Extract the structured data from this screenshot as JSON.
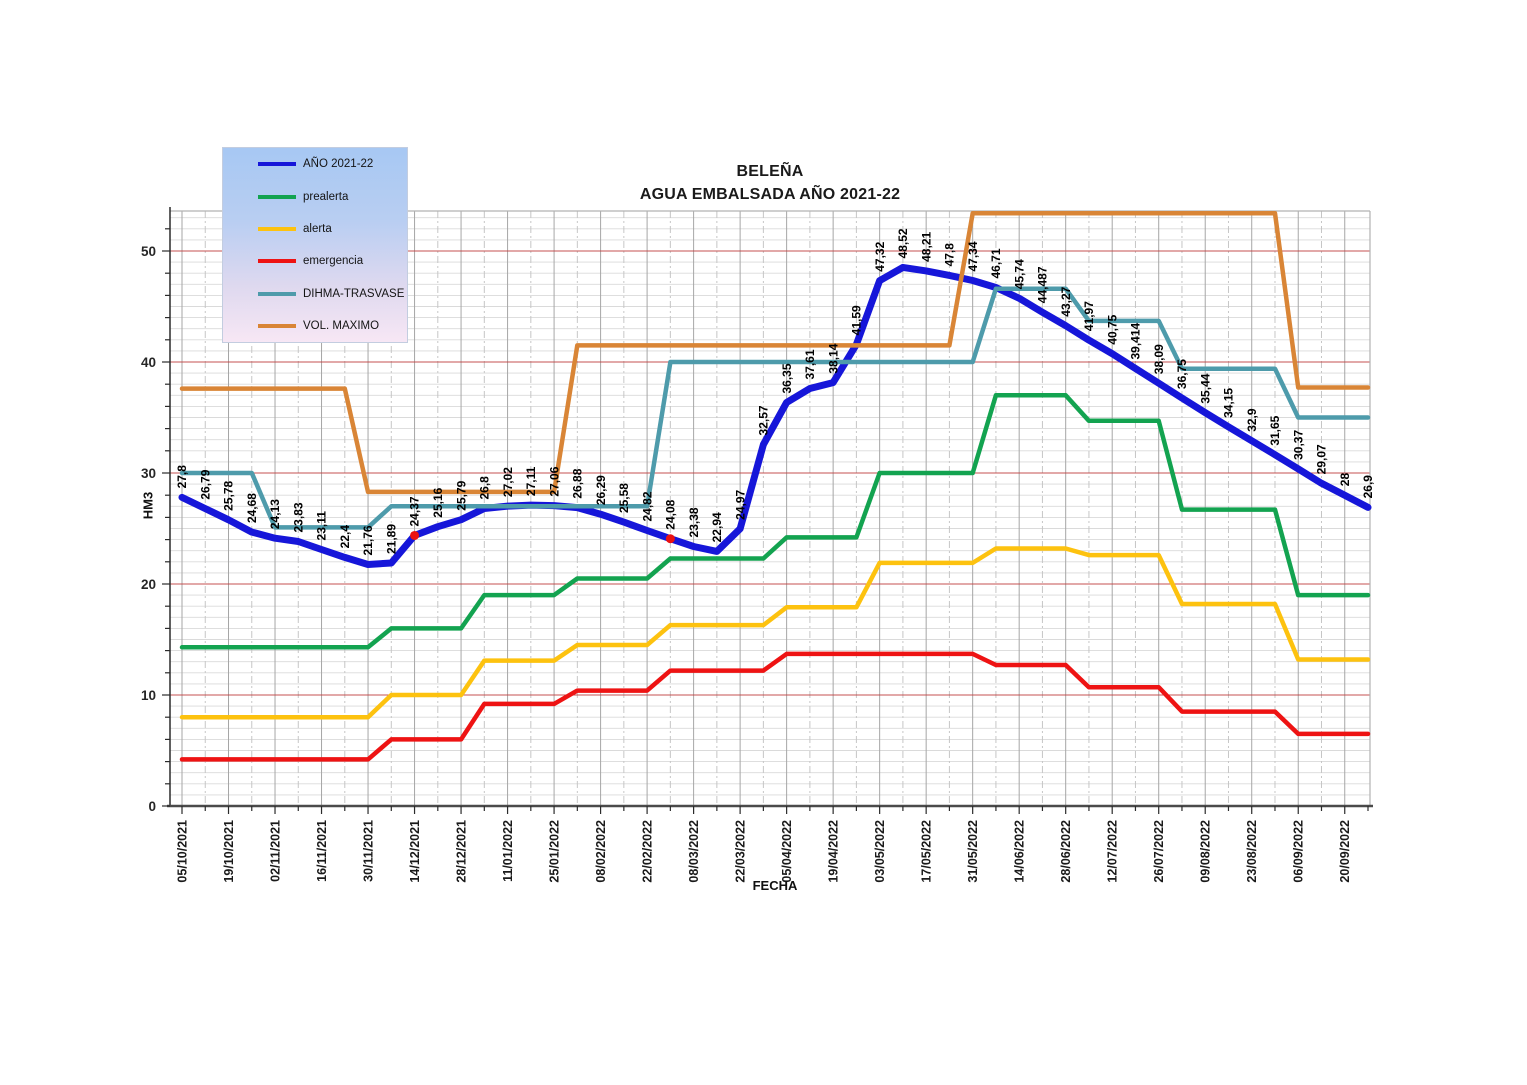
{
  "title": {
    "line1": "BELEÑA",
    "line2": "AGUA EMBALSADA AÑO 2021-22"
  },
  "axes": {
    "x_label": "FECHA",
    "y_label": "HM3",
    "y_ticks": [
      0,
      10,
      20,
      30,
      40,
      50
    ],
    "x_tick_labels": [
      "05/10/2021",
      "19/10/2021",
      "02/11/2021",
      "16/11/2021",
      "30/11/2021",
      "14/12/2021",
      "28/12/2021",
      "11/01/2022",
      "25/01/2022",
      "08/02/2022",
      "22/02/2022",
      "08/03/2022",
      "22/03/2022",
      "05/04/2022",
      "19/04/2022",
      "03/05/2022",
      "17/05/2022",
      "31/05/2022",
      "14/06/2022",
      "28/06/2022",
      "12/07/2022",
      "26/07/2022",
      "09/08/2022",
      "23/08/2022",
      "06/09/2022",
      "20/09/2022"
    ]
  },
  "legend": {
    "items": [
      {
        "label": "AÑO 2021-22",
        "color": "#1616d9"
      },
      {
        "label": "prealerta",
        "color": "#13a350"
      },
      {
        "label": "alerta",
        "color": "#fdc20f"
      },
      {
        "label": "emergencia",
        "color": "#ee1313"
      },
      {
        "label": "DIHMA-TRASVASE",
        "color": "#4e9bab"
      },
      {
        "label": "VOL. MAXIMO",
        "color": "#d98536"
      }
    ]
  },
  "chart_data": {
    "type": "line",
    "title": "BELEÑA AGUA EMBALSADA AÑO 2021-22",
    "xlabel": "FECHA",
    "ylabel": "HM3",
    "ylim": [
      0,
      53.7
    ],
    "x_is_weekly": true,
    "weeks": 52,
    "categories": [
      "05/10/2021",
      "19/10/2021",
      "02/11/2021",
      "16/11/2021",
      "30/11/2021",
      "14/12/2021",
      "28/12/2021",
      "11/01/2022",
      "25/01/2022",
      "08/02/2022",
      "22/02/2022",
      "08/03/2022",
      "22/03/2022",
      "05/04/2022",
      "19/04/2022",
      "03/05/2022",
      "17/05/2022",
      "31/05/2022",
      "14/06/2022",
      "28/06/2022",
      "12/07/2022",
      "26/07/2022",
      "09/08/2022",
      "23/08/2022",
      "06/09/2022",
      "20/09/2022"
    ],
    "grid": {
      "h_minor_step": 1,
      "h_major_step": 10,
      "h_major_color": "#c04040",
      "v_major_every_weeks": 2
    },
    "legend_position": "top-left-inside",
    "series": [
      {
        "name": "AÑO 2021-22",
        "color": "#1616d9",
        "width": 7,
        "values": [
          27.8,
          26.79,
          25.78,
          24.68,
          24.13,
          23.83,
          23.11,
          22.4,
          21.76,
          21.89,
          24.37,
          25.16,
          25.79,
          26.8,
          27.02,
          27.11,
          27.06,
          26.88,
          26.29,
          25.58,
          24.82,
          24.08,
          23.38,
          22.94,
          24.97,
          32.57,
          36.35,
          37.61,
          38.14,
          41.59,
          47.32,
          48.52,
          48.21,
          47.8,
          47.34,
          46.71,
          45.74,
          44.487,
          43.27,
          41.97,
          40.75,
          39.414,
          38.09,
          36.75,
          35.44,
          34.15,
          32.9,
          31.65,
          30.37,
          29.07,
          28,
          26.9
        ],
        "point_labels": [
          "27,8",
          "26,79",
          "25,78",
          "24,68",
          "24,13",
          "23,83",
          "23,11",
          "22,4",
          "21,76",
          "21,89",
          "24,37",
          "25,16",
          "25,79",
          "26,8",
          "27,02",
          "27,11",
          "27,06",
          "26,88",
          "26,29",
          "25,58",
          "24,82",
          "24,08",
          "23,38",
          "22,94",
          "24,97",
          "32,57",
          "36,35",
          "37,61",
          "38,14",
          "41,59",
          "47,32",
          "48,52",
          "48,21",
          "47,8",
          "47,34",
          "46,71",
          "45,74",
          "44,487",
          "43,27",
          "41,97",
          "40,75",
          "39,414",
          "38,09",
          "36,75",
          "35,44",
          "34,15",
          "32,9",
          "31,65",
          "30,37",
          "29,07",
          "28",
          "26,9"
        ],
        "marker_indices": [
          10,
          21
        ],
        "marker_color": "#ea1111"
      },
      {
        "name": "prealerta",
        "color": "#13a350",
        "width": 4.5,
        "values": [
          14.3,
          14.3,
          14.3,
          14.3,
          14.3,
          14.3,
          14.3,
          14.3,
          14.3,
          16,
          16,
          16,
          16,
          19,
          19,
          19,
          19,
          20.5,
          20.5,
          20.5,
          20.5,
          22.3,
          22.3,
          22.3,
          22.3,
          22.3,
          24.2,
          24.2,
          24.2,
          24.2,
          30,
          30,
          30,
          30,
          30,
          37,
          37,
          37,
          37,
          34.7,
          34.7,
          34.7,
          34.7,
          26.7,
          26.7,
          26.7,
          26.7,
          26.7,
          19,
          19,
          19,
          19
        ]
      },
      {
        "name": "alerta",
        "color": "#fdc20f",
        "width": 4.5,
        "values": [
          8,
          8,
          8,
          8,
          8,
          8,
          8,
          8,
          8,
          10,
          10,
          10,
          10,
          13.1,
          13.1,
          13.1,
          13.1,
          14.5,
          14.5,
          14.5,
          14.5,
          16.3,
          16.3,
          16.3,
          16.3,
          16.3,
          17.9,
          17.9,
          17.9,
          17.9,
          21.9,
          21.9,
          21.9,
          21.9,
          21.9,
          23.2,
          23.2,
          23.2,
          23.2,
          22.6,
          22.6,
          22.6,
          22.6,
          18.2,
          18.2,
          18.2,
          18.2,
          18.2,
          13.2,
          13.2,
          13.2,
          13.2
        ]
      },
      {
        "name": "emergencia",
        "color": "#ee1313",
        "width": 4.5,
        "values": [
          4.2,
          4.2,
          4.2,
          4.2,
          4.2,
          4.2,
          4.2,
          4.2,
          4.2,
          6,
          6,
          6,
          6,
          9.2,
          9.2,
          9.2,
          9.2,
          10.4,
          10.4,
          10.4,
          10.4,
          12.2,
          12.2,
          12.2,
          12.2,
          12.2,
          13.7,
          13.7,
          13.7,
          13.7,
          13.7,
          13.7,
          13.7,
          13.7,
          13.7,
          12.7,
          12.7,
          12.7,
          12.7,
          10.7,
          10.7,
          10.7,
          10.7,
          8.5,
          8.5,
          8.5,
          8.5,
          8.5,
          6.5,
          6.5,
          6.5,
          6.5
        ]
      },
      {
        "name": "DIHMA-TRASVASE",
        "color": "#4e9bab",
        "width": 4.5,
        "values": [
          30,
          30,
          30,
          30,
          25.1,
          25.1,
          25.1,
          25.1,
          25.1,
          27,
          27,
          27,
          27,
          27,
          27,
          27,
          27,
          27,
          27,
          27,
          27,
          40,
          40,
          40,
          40,
          40,
          40,
          40,
          40,
          40,
          40,
          40,
          40,
          40,
          40,
          46.6,
          46.6,
          46.6,
          46.6,
          43.7,
          43.7,
          43.7,
          43.7,
          39.4,
          39.4,
          39.4,
          39.4,
          39.4,
          35,
          35,
          35,
          35
        ]
      },
      {
        "name": "VOL. MAXIMO",
        "color": "#d98536",
        "width": 4.5,
        "values": [
          37.6,
          37.6,
          37.6,
          37.6,
          37.6,
          37.6,
          37.6,
          37.6,
          28.3,
          28.3,
          28.3,
          28.3,
          28.3,
          28.3,
          28.3,
          28.3,
          28.3,
          41.5,
          41.5,
          41.5,
          41.5,
          41.5,
          41.5,
          41.5,
          41.5,
          41.5,
          41.5,
          41.5,
          41.5,
          41.5,
          41.5,
          41.5,
          41.5,
          41.5,
          53.4,
          53.4,
          53.4,
          53.4,
          53.4,
          53.4,
          53.4,
          53.4,
          53.4,
          53.4,
          53.4,
          53.4,
          53.4,
          53.4,
          37.7,
          37.7,
          37.7,
          37.7
        ]
      }
    ]
  }
}
